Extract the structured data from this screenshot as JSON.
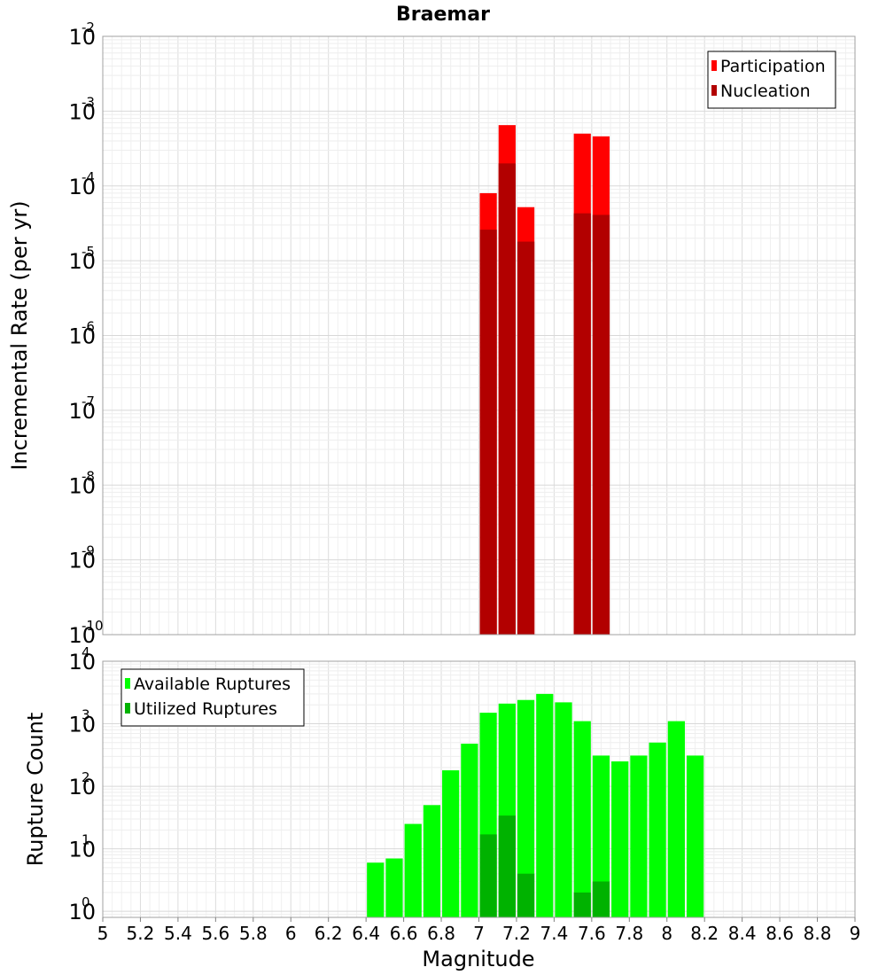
{
  "title": "Braemar",
  "xlabel": "Magnitude",
  "x_ticks": [
    "5",
    "5.2",
    "5.4",
    "5.6",
    "5.8",
    "6",
    "6.2",
    "6.4",
    "6.6",
    "6.8",
    "7",
    "7.2",
    "7.4",
    "7.6",
    "7.8",
    "8",
    "8.2",
    "8.4",
    "8.6",
    "8.8",
    "9"
  ],
  "chart_data": [
    {
      "type": "bar",
      "ylabel": "Incremental Rate (per yr)",
      "yscale": "log",
      "xlim": [
        5,
        9
      ],
      "ylim": [
        1e-10,
        0.01
      ],
      "y_tick_exponents": [
        "-10",
        "-9",
        "-8",
        "-7",
        "-6",
        "-5",
        "-4",
        "-3",
        "-2"
      ],
      "grid": true,
      "legend_position": "top-right",
      "bar_width": 0.1,
      "series": [
        {
          "name": "Participation",
          "color": "#ff0000",
          "x": [
            7.05,
            7.15,
            7.25,
            7.55,
            7.65
          ],
          "values": [
            8e-05,
            0.00065,
            5.2e-05,
            0.0005,
            0.00046
          ]
        },
        {
          "name": "Nucleation",
          "color": "#b20000",
          "x": [
            7.05,
            7.15,
            7.25,
            7.55,
            7.65
          ],
          "values": [
            2.6e-05,
            0.0002,
            1.8e-05,
            4.3e-05,
            4.1e-05
          ]
        }
      ]
    },
    {
      "type": "bar",
      "ylabel": "Rupture Count",
      "yscale": "log",
      "xlim": [
        5,
        9
      ],
      "ylim": [
        0.8,
        10000
      ],
      "y_tick_exponents": [
        "0",
        "1",
        "2",
        "3",
        "4"
      ],
      "grid": true,
      "legend_position": "top-left",
      "bar_width": 0.1,
      "series": [
        {
          "name": "Available Ruptures",
          "color": "#00ff00",
          "x": [
            6.45,
            6.55,
            6.65,
            6.75,
            6.85,
            6.95,
            7.05,
            7.15,
            7.25,
            7.35,
            7.45,
            7.55,
            7.65,
            7.75,
            7.85,
            7.95,
            8.05,
            8.15
          ],
          "values": [
            6,
            7,
            25,
            50,
            180,
            480,
            1500,
            2100,
            2400,
            3000,
            2200,
            1100,
            310,
            250,
            310,
            500,
            1100,
            310
          ]
        },
        {
          "name": "Utilized Ruptures",
          "color": "#00b200",
          "x": [
            7.05,
            7.15,
            7.25,
            7.55,
            7.65
          ],
          "values": [
            17,
            34,
            4,
            2,
            3
          ]
        }
      ]
    }
  ]
}
